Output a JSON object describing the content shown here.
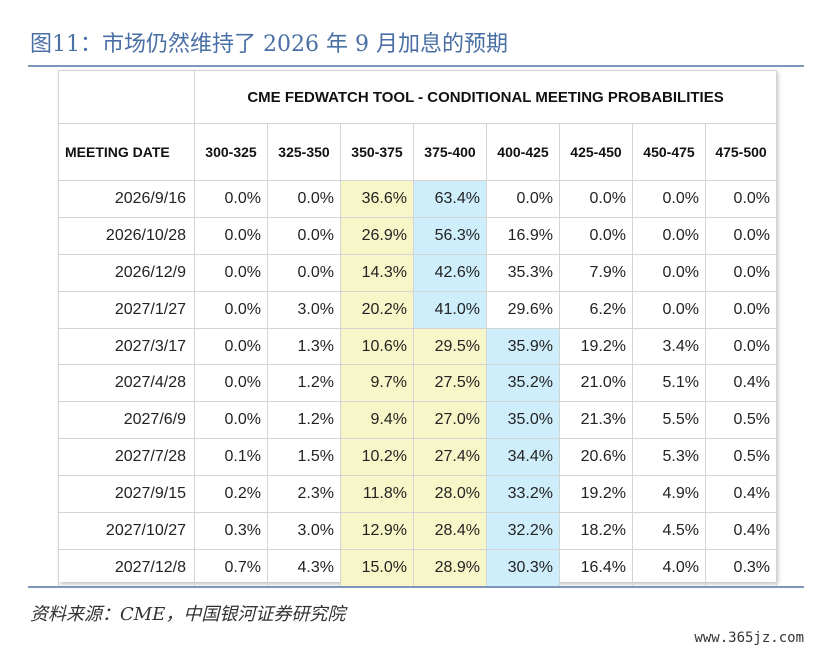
{
  "figure": {
    "title": "图11：市场仍然维持了 2026 年 9 月加息的预期",
    "source": "资料来源：CME，中国银河证券研究院",
    "watermark": "www.365jz.com"
  },
  "table": {
    "title": "CME FEDWATCH TOOL - CONDITIONAL MEETING PROBABILITIES",
    "date_header": "MEETING DATE",
    "columns": [
      "300-325",
      "325-350",
      "350-375",
      "375-400",
      "400-425",
      "425-450",
      "450-475",
      "475-500"
    ],
    "highlight_colors": {
      "yellow": "#f7f6c8",
      "blue": "#cfeefb"
    },
    "rows": [
      {
        "date": "2026/9/16",
        "values": [
          "0.0%",
          "0.0%",
          "36.6%",
          "63.4%",
          "0.0%",
          "0.0%",
          "0.0%",
          "0.0%"
        ],
        "yellow": 2,
        "blue": 3
      },
      {
        "date": "2026/10/28",
        "values": [
          "0.0%",
          "0.0%",
          "26.9%",
          "56.3%",
          "16.9%",
          "0.0%",
          "0.0%",
          "0.0%"
        ],
        "yellow": 2,
        "blue": 3
      },
      {
        "date": "2026/12/9",
        "values": [
          "0.0%",
          "0.0%",
          "14.3%",
          "42.6%",
          "35.3%",
          "7.9%",
          "0.0%",
          "0.0%"
        ],
        "yellow": 2,
        "blue": 3
      },
      {
        "date": "2027/1/27",
        "values": [
          "0.0%",
          "3.0%",
          "20.2%",
          "41.0%",
          "29.6%",
          "6.2%",
          "0.0%",
          "0.0%"
        ],
        "yellow": 2,
        "blue": 3
      },
      {
        "date": "2027/3/17",
        "values": [
          "0.0%",
          "1.3%",
          "10.6%",
          "29.5%",
          "35.9%",
          "19.2%",
          "3.4%",
          "0.0%"
        ],
        "yellow": 2,
        "yellow2": 3,
        "blue": 4
      },
      {
        "date": "2027/4/28",
        "values": [
          "0.0%",
          "1.2%",
          "9.7%",
          "27.5%",
          "35.2%",
          "21.0%",
          "5.1%",
          "0.4%"
        ],
        "yellow": 2,
        "yellow2": 3,
        "blue": 4
      },
      {
        "date": "2027/6/9",
        "values": [
          "0.0%",
          "1.2%",
          "9.4%",
          "27.0%",
          "35.0%",
          "21.3%",
          "5.5%",
          "0.5%"
        ],
        "yellow": 2,
        "yellow2": 3,
        "blue": 4
      },
      {
        "date": "2027/7/28",
        "values": [
          "0.1%",
          "1.5%",
          "10.2%",
          "27.4%",
          "34.4%",
          "20.6%",
          "5.3%",
          "0.5%"
        ],
        "yellow": 2,
        "yellow2": 3,
        "blue": 4
      },
      {
        "date": "2027/9/15",
        "values": [
          "0.2%",
          "2.3%",
          "11.8%",
          "28.0%",
          "33.2%",
          "19.2%",
          "4.9%",
          "0.4%"
        ],
        "yellow": 2,
        "yellow2": 3,
        "blue": 4
      },
      {
        "date": "2027/10/27",
        "values": [
          "0.3%",
          "3.0%",
          "12.9%",
          "28.4%",
          "32.2%",
          "18.2%",
          "4.5%",
          "0.4%"
        ],
        "yellow": 2,
        "yellow2": 3,
        "blue": 4
      },
      {
        "date": "2027/12/8",
        "values": [
          "0.7%",
          "4.3%",
          "15.0%",
          "28.9%",
          "30.3%",
          "16.4%",
          "4.0%",
          "0.3%"
        ],
        "yellow": 2,
        "yellow2": 3,
        "blue": 4
      }
    ]
  }
}
